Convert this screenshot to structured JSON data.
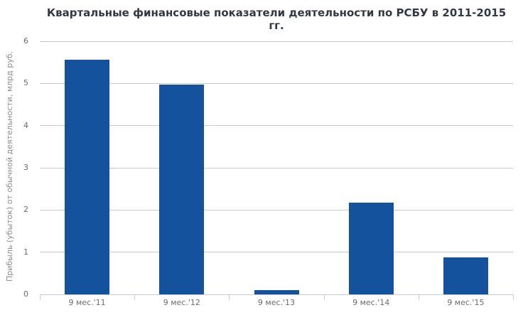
{
  "chart_data": {
    "type": "bar",
    "title": "Квартальные финансовые показатели деятельности по РСБУ в 2011-2015 гг.",
    "ylabel": "Прибыль (убыток) от обычной деятельности, млрд руб.",
    "xlabel": "",
    "categories": [
      "9 мес.'11",
      "9 мес.'12",
      "9 мес.'13",
      "9 мес.'14",
      "9 мес.'15"
    ],
    "values": [
      5.57,
      4.97,
      0.1,
      2.18,
      0.88
    ],
    "ylim": [
      0,
      6
    ],
    "yticks": [
      0,
      1,
      2,
      3,
      4,
      5,
      6
    ],
    "grid": true,
    "legend": "none",
    "colors": {
      "bar": "#15529e",
      "title": "#333944",
      "gridline": "#c8c8c8",
      "axis_line": "#c3ced8",
      "tick_label": "#6b6b6b",
      "axis_title": "#8d8d8d",
      "background": "#ffffff"
    }
  }
}
